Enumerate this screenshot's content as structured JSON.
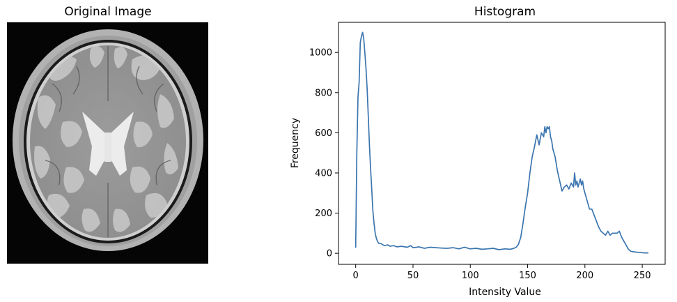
{
  "figure": {
    "left_panel": {
      "title": "Original Image",
      "image_description": "axial brain MRI slice"
    },
    "right_panel": {
      "title": "Histogram"
    }
  },
  "chart_data": {
    "type": "line",
    "title": "Histogram",
    "xlabel": "Intensity Value",
    "ylabel": "Frequency",
    "xlim": [
      -15,
      270
    ],
    "ylim": [
      -55,
      1150
    ],
    "x_ticks": [
      0,
      50,
      100,
      150,
      200,
      250
    ],
    "y_ticks": [
      0,
      200,
      400,
      600,
      800,
      1000
    ],
    "grid": false,
    "line_color": "#3b75af",
    "series": [
      {
        "x": [
          0,
          1,
          2,
          3,
          4,
          5,
          6,
          7,
          8,
          9,
          10,
          11,
          12,
          13,
          14,
          15,
          16,
          17,
          18,
          19,
          20,
          22,
          25,
          28,
          30,
          33,
          36,
          40,
          45,
          48,
          50,
          53,
          55,
          60,
          65,
          70,
          75,
          80,
          85,
          90,
          95,
          100,
          105,
          110,
          115,
          120,
          125,
          130,
          135,
          138,
          140,
          142,
          144,
          146,
          148,
          150,
          152,
          154,
          156,
          158,
          160,
          162,
          164,
          165,
          166,
          167,
          168,
          169,
          170,
          171,
          172,
          174,
          176,
          178,
          180,
          182,
          184,
          186,
          188,
          190,
          191,
          192,
          193,
          194,
          196,
          197,
          198,
          199,
          200,
          202,
          204,
          206,
          208,
          210,
          212,
          214,
          216,
          218,
          220,
          222,
          224,
          226,
          228,
          230,
          232,
          234,
          236,
          238,
          240,
          242,
          244,
          246,
          248,
          250,
          252,
          255
        ],
        "y": [
          30,
          500,
          780,
          850,
          1050,
          1080,
          1100,
          1070,
          1000,
          920,
          820,
          680,
          540,
          420,
          320,
          210,
          150,
          100,
          75,
          60,
          50,
          48,
          38,
          42,
          35,
          38,
          32,
          35,
          30,
          38,
          28,
          30,
          32,
          25,
          30,
          28,
          26,
          25,
          28,
          22,
          30,
          22,
          25,
          20,
          22,
          25,
          18,
          22,
          20,
          25,
          30,
          45,
          80,
          150,
          230,
          300,
          400,
          480,
          530,
          590,
          540,
          600,
          580,
          630,
          600,
          630,
          620,
          630,
          580,
          560,
          520,
          480,
          410,
          360,
          310,
          330,
          340,
          320,
          350,
          330,
          400,
          340,
          360,
          330,
          370,
          340,
          360,
          320,
          300,
          260,
          220,
          220,
          190,
          160,
          130,
          110,
          100,
          90,
          110,
          90,
          100,
          100,
          100,
          110,
          80,
          60,
          40,
          20,
          10,
          8,
          6,
          5,
          4,
          3,
          2,
          2
        ]
      }
    ]
  }
}
